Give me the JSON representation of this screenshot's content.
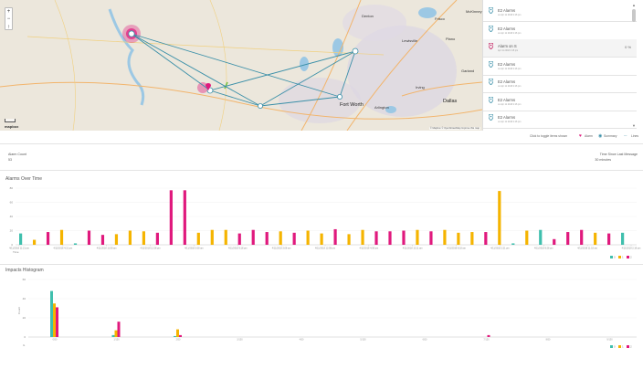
{
  "map": {
    "zoom_in": "+",
    "zoom_out": "−",
    "compass": "↑",
    "logo": "mapbox",
    "attribution": "© Mapbox © OpenStreetMap Improve this map",
    "cities": [
      {
        "name": "Dallas",
        "big": true
      },
      {
        "name": "Fort Worth",
        "big": true
      },
      {
        "name": "Garland",
        "big": false
      },
      {
        "name": "Arlington",
        "big": false
      },
      {
        "name": "Irving",
        "big": false
      },
      {
        "name": "Plano",
        "big": false
      },
      {
        "name": "Frisco",
        "big": false
      },
      {
        "name": "Denton",
        "big": false
      },
      {
        "name": "Lewisville",
        "big": false
      },
      {
        "name": "McKinney",
        "big": false
      }
    ]
  },
  "alarm_list": {
    "items": [
      {
        "title": "E2 Alarms",
        "sub": "on Apr 11 2018 2:16 pm",
        "color": "#3a8fa8",
        "count": ""
      },
      {
        "title": "E2 Alarms",
        "sub": "on Apr 11 2018 2:16 pm",
        "color": "#3a8fa8",
        "count": ""
      },
      {
        "title": "Alarm on S",
        "sub": "Apr 11 2018 2:15 pm",
        "color": "#c2185b",
        "count": "0",
        "extra": "%"
      },
      {
        "title": "E2 Alarms",
        "sub": "on Apr 11 2018 2:16 pm",
        "color": "#3a8fa8",
        "count": ""
      },
      {
        "title": "E2 Alarms",
        "sub": "on Apr 11 2018 2:16 pm",
        "color": "#3a8fa8",
        "count": ""
      },
      {
        "title": "E2 Alarms",
        "sub": "on Apr 11 2018 2:16 pm",
        "color": "#3a8fa8",
        "count": ""
      },
      {
        "title": "E2 Alarms",
        "sub": "on Apr 11 2018 2:16 pm",
        "color": "#3a8fa8",
        "count": ""
      }
    ],
    "scroll_up": "▲",
    "scroll_down": "▼"
  },
  "map_legend": {
    "hint": "Click to toggle items shown",
    "alarm": "Alarm",
    "summary": "Summary",
    "lines": "Lines"
  },
  "stats": {
    "alarm_count_label": "Alarm Count",
    "alarm_count_value": "53",
    "time_since_label": "Time Since Last Message",
    "time_since_value": "30 minutes"
  },
  "colors": {
    "teal": "#3fbfad",
    "orange": "#f5b400",
    "magenta": "#e0197d",
    "route": "#3a8fa8"
  },
  "chart_data": [
    {
      "type": "bar",
      "title": "Alarms Over Time",
      "xlabel": "Time",
      "ylabel": "",
      "ylim": [
        0,
        80
      ],
      "yticks": [
        "0",
        "20",
        "40",
        "60",
        "80"
      ],
      "tick_labels": [
        "4/11/2018 11:21 pm",
        "4/11/2018 4:21 pm",
        "4/11/2018 11:58 am",
        "4/11/2018 12:28 pm",
        "4/11/2018 3:08 am",
        "4/11/2018 9:18 pm",
        "4/11/2018 3:08 am",
        "4/11/2018 12:58 pm",
        "4/11/2018 4:08 pm",
        "4/11/2018 12:11 am",
        "4/11/2018 8:18 am",
        "4/11/2018 2:21 pm",
        "4/11/2018 8:28 pm",
        "4/11/2018 11:18 am",
        "4/11/2018 2:18 pm"
      ],
      "legend": [
        "0",
        "1",
        "2"
      ],
      "bars": [
        {
          "s": 0,
          "v": 16
        },
        {
          "s": 1,
          "v": 7
        },
        {
          "s": 2,
          "v": 18
        },
        {
          "s": 1,
          "v": 21
        },
        {
          "s": 0,
          "v": 2
        },
        {
          "s": 2,
          "v": 20
        },
        {
          "s": 2,
          "v": 14
        },
        {
          "s": 1,
          "v": 15
        },
        {
          "s": 1,
          "v": 20
        },
        {
          "s": 1,
          "v": 19
        },
        {
          "s": 2,
          "v": 17
        },
        {
          "s": 2,
          "v": 77
        },
        {
          "s": 2,
          "v": 77
        },
        {
          "s": 1,
          "v": 17
        },
        {
          "s": 1,
          "v": 21
        },
        {
          "s": 1,
          "v": 21
        },
        {
          "s": 2,
          "v": 16
        },
        {
          "s": 2,
          "v": 21
        },
        {
          "s": 2,
          "v": 18
        },
        {
          "s": 1,
          "v": 19
        },
        {
          "s": 2,
          "v": 17
        },
        {
          "s": 1,
          "v": 20
        },
        {
          "s": 1,
          "v": 16
        },
        {
          "s": 2,
          "v": 22
        },
        {
          "s": 1,
          "v": 15
        },
        {
          "s": 1,
          "v": 21
        },
        {
          "s": 2,
          "v": 19
        },
        {
          "s": 2,
          "v": 19
        },
        {
          "s": 2,
          "v": 20
        },
        {
          "s": 1,
          "v": 21
        },
        {
          "s": 2,
          "v": 19
        },
        {
          "s": 1,
          "v": 21
        },
        {
          "s": 1,
          "v": 17
        },
        {
          "s": 1,
          "v": 18
        },
        {
          "s": 2,
          "v": 18
        },
        {
          "s": 1,
          "v": 76
        },
        {
          "s": 0,
          "v": 2
        },
        {
          "s": 1,
          "v": 20
        },
        {
          "s": 0,
          "v": 21
        },
        {
          "s": 2,
          "v": 8
        },
        {
          "s": 2,
          "v": 18
        },
        {
          "s": 2,
          "v": 21
        },
        {
          "s": 1,
          "v": 17
        },
        {
          "s": 2,
          "v": 16
        },
        {
          "s": 0,
          "v": 17
        }
      ]
    },
    {
      "type": "bar",
      "title": "Impacts Histogram",
      "xlabel": "",
      "ylabel": "Count",
      "ylim": [
        0,
        60
      ],
      "yticks": [
        "0",
        "20",
        "40",
        "60"
      ],
      "tick_labels": [
        "0/50",
        "1/150",
        "2/50",
        "3/150",
        "4/50",
        "5/150",
        "6/50",
        "7/150",
        "8/50",
        "9/150"
      ],
      "x_extra": "G",
      "legend": [
        "0",
        "1",
        "2"
      ],
      "groups": [
        {
          "values": [
            48,
            35,
            31
          ]
        },
        {
          "values": [
            2,
            7,
            16
          ]
        },
        {
          "values": [
            1,
            8,
            2
          ]
        },
        {
          "values": [
            0,
            0,
            0
          ]
        },
        {
          "values": [
            0,
            0,
            0
          ]
        },
        {
          "values": [
            0,
            0,
            0
          ]
        },
        {
          "values": [
            0,
            0,
            0
          ]
        },
        {
          "values": [
            0,
            0,
            2
          ]
        },
        {
          "values": [
            0,
            0,
            0
          ]
        },
        {
          "values": [
            0,
            0,
            0
          ]
        }
      ]
    }
  ]
}
